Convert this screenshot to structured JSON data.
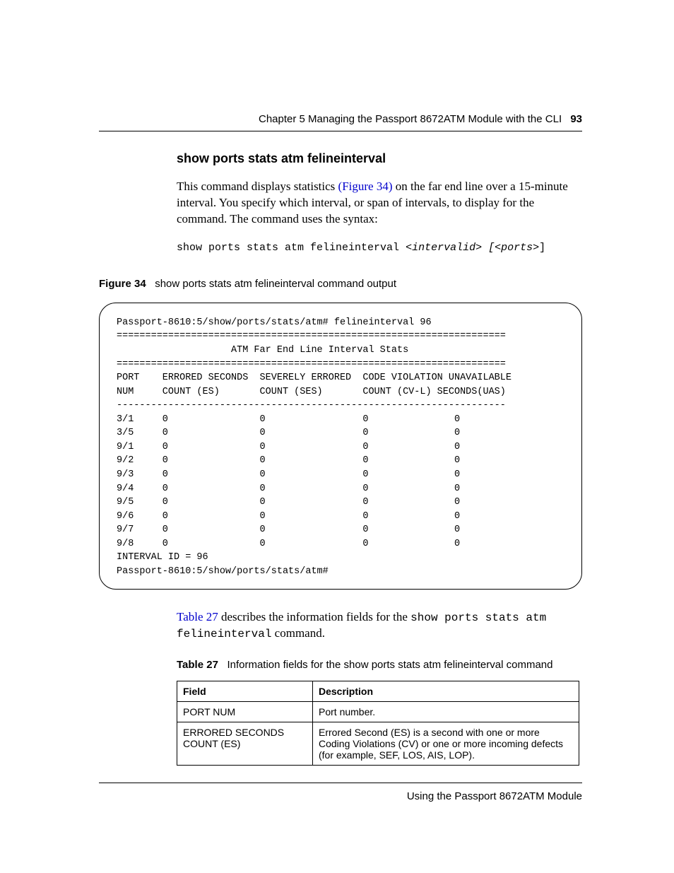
{
  "header": {
    "running": "Chapter 5  Managing the Passport 8672ATM Module with the CLI",
    "pagenum": "93"
  },
  "section": {
    "title": "show ports stats atm felineinterval",
    "para_pre": "This command displays statistics ",
    "fig_ref": "(Figure 34)",
    "para_post": " on the far end line over a 15-minute interval. You specify which interval, or span of intervals, to display for the command. The command uses the syntax:",
    "syntax_plain": "show ports stats atm felineinterval ",
    "syntax_var1": "<intervalid>",
    "syntax_mid": " ",
    "syntax_var2": "[<ports>",
    "syntax_tail": "]"
  },
  "figure": {
    "label": "Figure 34",
    "caption": "show ports stats atm felineinterval command output",
    "terminal": "Passport-8610:5/show/ports/stats/atm# felineinterval 96\n====================================================================\n                    ATM Far End Line Interval Stats\n====================================================================\nPORT    ERRORED SECONDS  SEVERELY ERRORED  CODE VIOLATION UNAVAILABLE\nNUM     COUNT (ES)       COUNT (SES)       COUNT (CV-L) SECONDS(UAS)\n--------------------------------------------------------------------\n3/1     0                0                 0               0\n3/5     0                0                 0               0\n9/1     0                0                 0               0\n9/2     0                0                 0               0\n9/3     0                0                 0               0\n9/4     0                0                 0               0\n9/5     0                0                 0               0\n9/6     0                0                 0               0\n9/7     0                0                 0               0\n9/8     0                0                 0               0\nINTERVAL ID = 96\nPassport-8610:5/show/ports/stats/atm#"
  },
  "after_fig": {
    "ref": "Table 27",
    "mid": " describes the information fields for the ",
    "cmd1": "show ports stats atm",
    "cmd2": "felineinterval",
    "tail": " command."
  },
  "table": {
    "label": "Table 27",
    "caption": "Information fields for the show ports stats atm felineinterval command",
    "head_field": "Field",
    "head_desc": "Description",
    "rows": [
      {
        "field": "PORT NUM",
        "desc": "Port number."
      },
      {
        "field": "ERRORED SECONDS COUNT (ES)",
        "desc": "Errored Second (ES) is a second with one or more Coding Violations (CV) or one or more incoming defects (for example, SEF, LOS, AIS, LOP)."
      }
    ]
  },
  "footer": {
    "text": "Using the Passport 8672ATM Module"
  }
}
